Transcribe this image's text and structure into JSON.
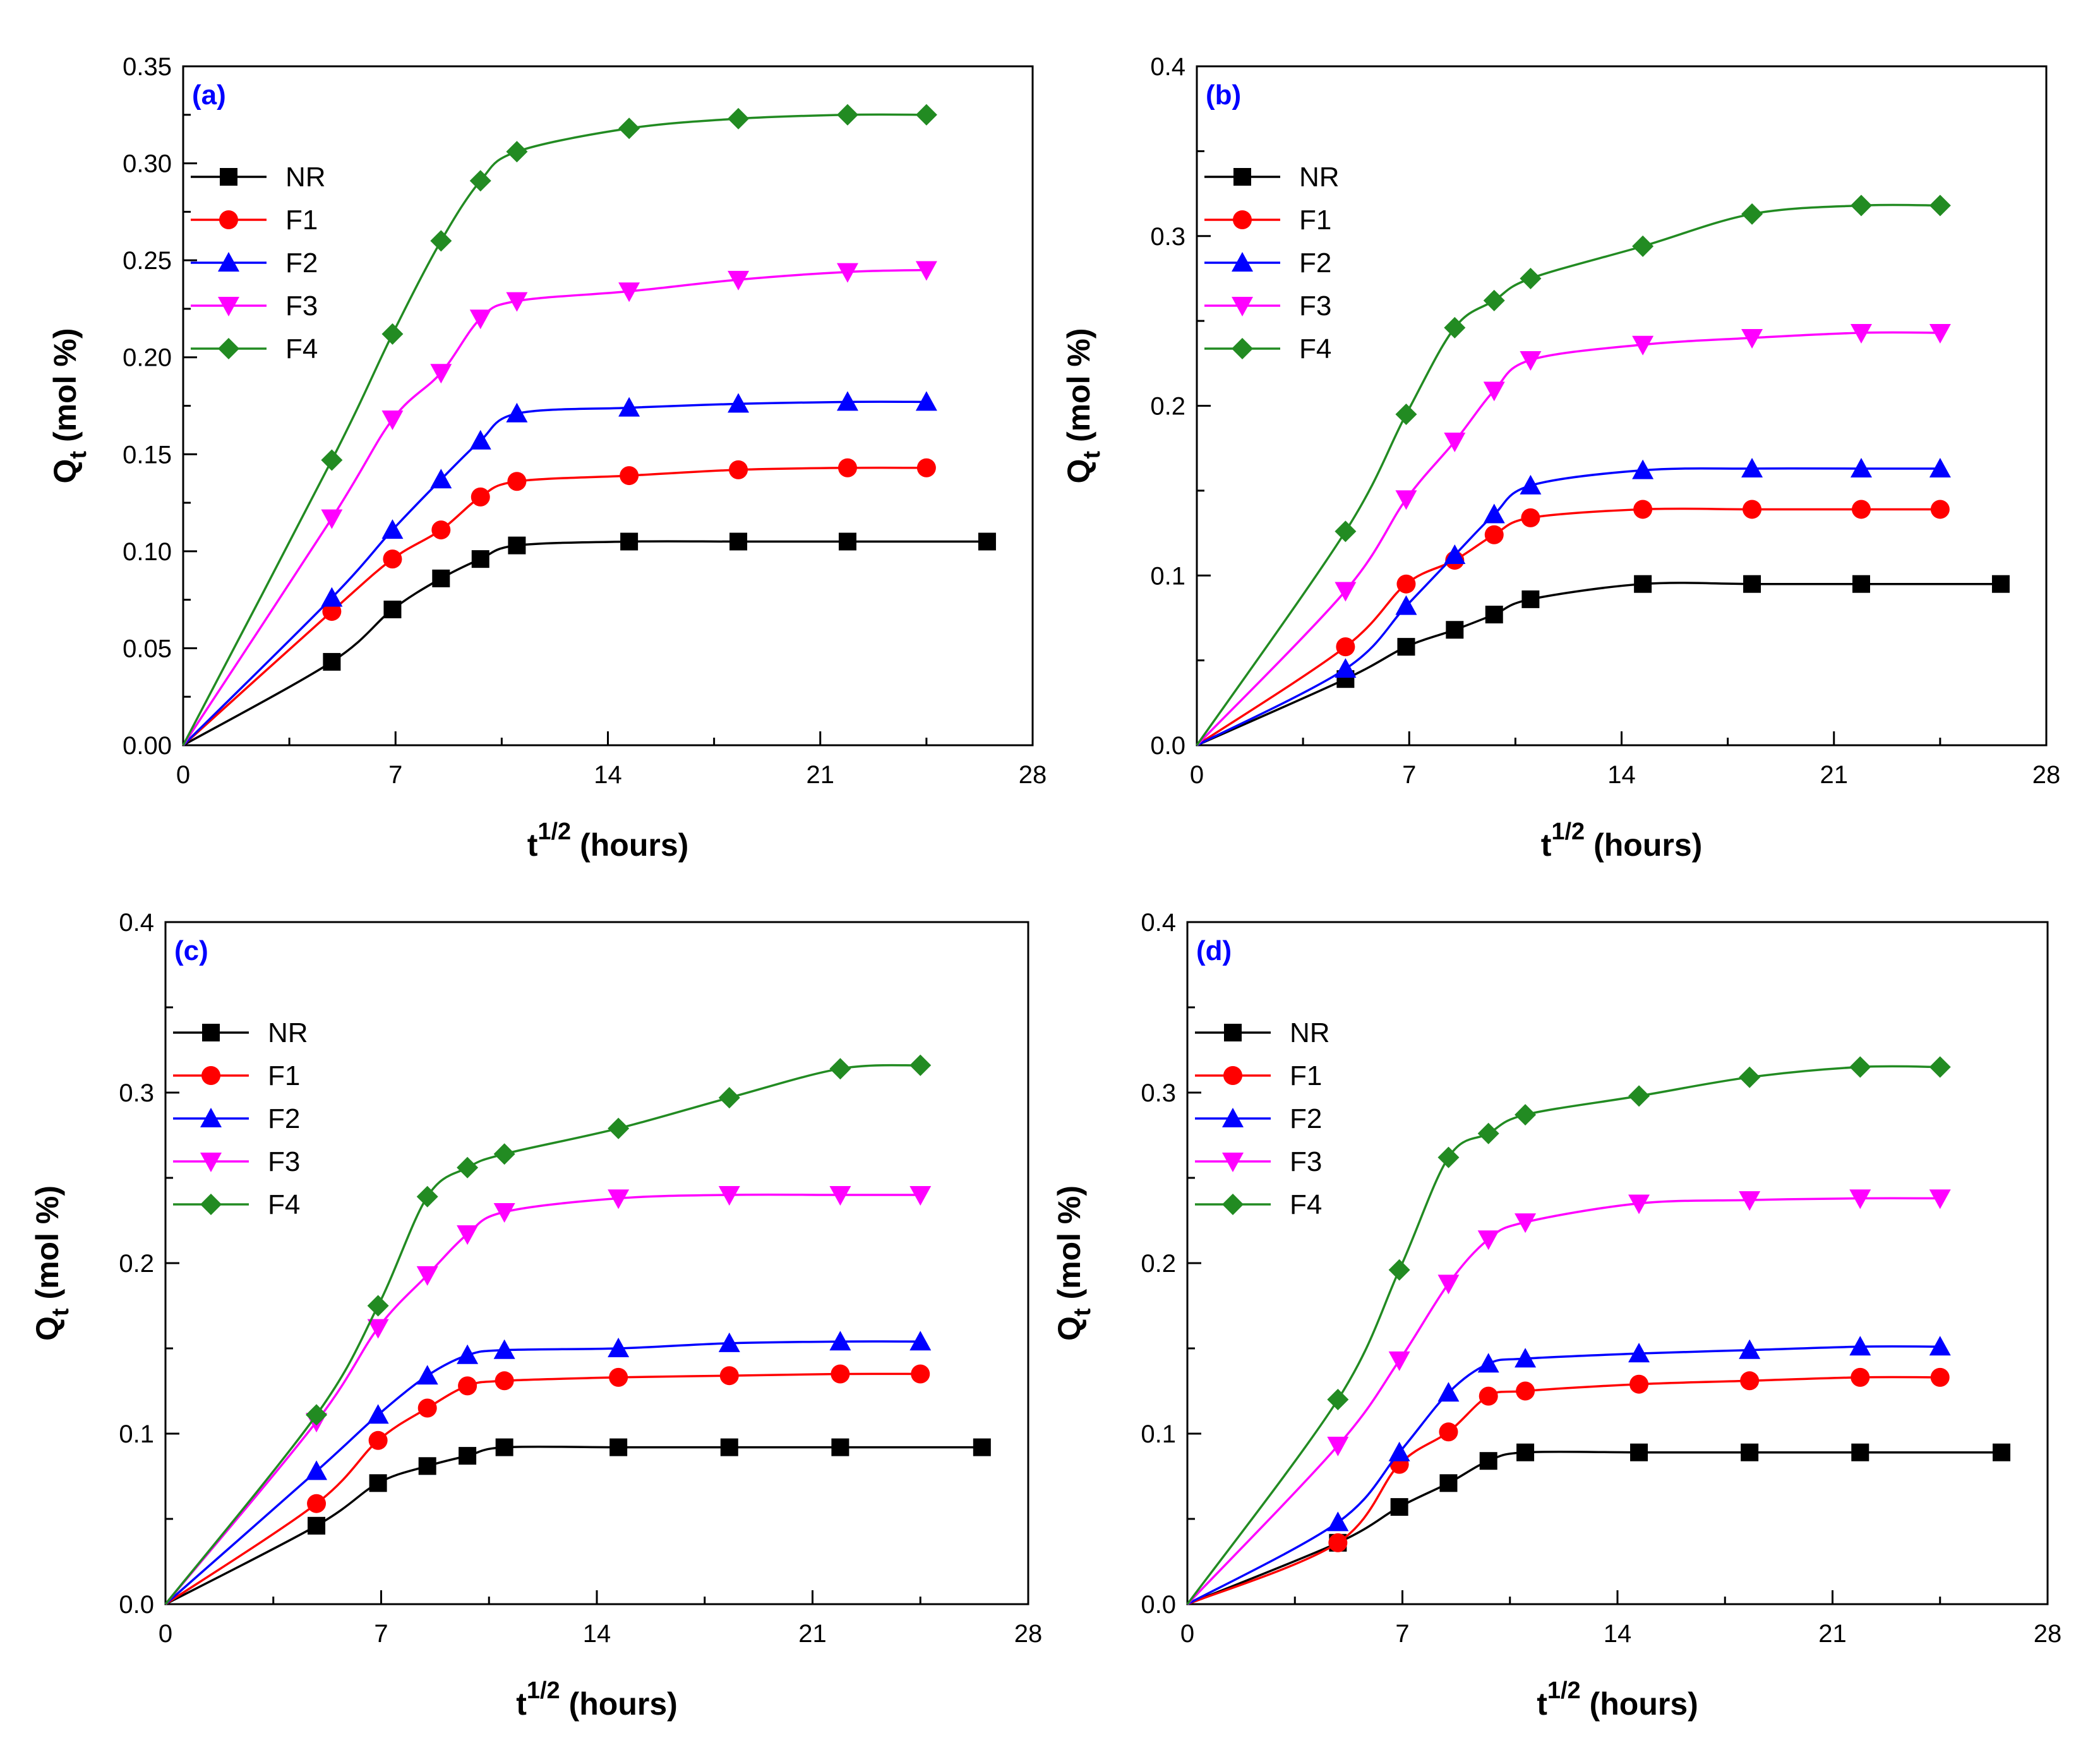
{
  "colors": {
    "NR": "#000000",
    "F1": "#ff0000",
    "F2": "#0000ff",
    "F3": "#ff00ff",
    "F4": "#228b22",
    "panel_label": "#0000ff"
  },
  "chart_data": [
    {
      "type": "line",
      "panel": "(a)",
      "xlabel": "t",
      "xlabel_sup": "1/2",
      "xlabel_unit": "(hours)",
      "ylabel": "Q",
      "ylabel_sub": "t",
      "ylabel_unit": "(mol %)",
      "xlim": [
        0,
        28
      ],
      "ylim": [
        0,
        0.35
      ],
      "xticks": [
        "0",
        "7",
        "14",
        "21",
        "28"
      ],
      "xtick_values": [
        0,
        7,
        14,
        21,
        28
      ],
      "yticks": [
        "0.00",
        "0.05",
        "0.10",
        "0.15",
        "0.20",
        "0.25",
        "0.30",
        "0.35"
      ],
      "ytick_values": [
        0,
        0.05,
        0.1,
        0.15,
        0.2,
        0.25,
        0.3,
        0.35
      ],
      "legend": [
        "NR",
        "F1",
        "F2",
        "F3",
        "F4"
      ],
      "series": [
        {
          "name": "NR",
          "marker": "square",
          "x": [
            0,
            4.9,
            6.9,
            8.5,
            9.8,
            11.0,
            14.7,
            18.3,
            21.9,
            26.5
          ],
          "y": [
            0,
            0.043,
            0.07,
            0.086,
            0.096,
            0.103,
            0.105,
            0.105,
            0.105,
            0.105
          ]
        },
        {
          "name": "F1",
          "marker": "circle",
          "x": [
            0,
            4.9,
            6.9,
            8.5,
            9.8,
            11.0,
            14.7,
            18.3,
            21.9,
            24.5
          ],
          "y": [
            0,
            0.069,
            0.096,
            0.111,
            0.128,
            0.136,
            0.139,
            0.142,
            0.143,
            0.143
          ]
        },
        {
          "name": "F2",
          "marker": "triangle-up",
          "x": [
            0,
            4.9,
            6.9,
            8.5,
            9.8,
            11.0,
            14.7,
            18.3,
            21.9,
            24.5
          ],
          "y": [
            0,
            0.076,
            0.111,
            0.137,
            0.157,
            0.171,
            0.174,
            0.176,
            0.177,
            0.177
          ]
        },
        {
          "name": "F3",
          "marker": "triangle-down",
          "x": [
            0,
            4.9,
            6.9,
            8.5,
            9.8,
            11.0,
            14.7,
            18.3,
            21.9,
            24.5
          ],
          "y": [
            0,
            0.117,
            0.168,
            0.192,
            0.22,
            0.229,
            0.234,
            0.24,
            0.244,
            0.245
          ]
        },
        {
          "name": "F4",
          "marker": "diamond",
          "x": [
            0,
            4.9,
            6.9,
            8.5,
            9.8,
            11.0,
            14.7,
            18.3,
            21.9,
            24.5
          ],
          "y": [
            0,
            0.147,
            0.212,
            0.26,
            0.291,
            0.306,
            0.318,
            0.323,
            0.325,
            0.325
          ]
        }
      ]
    },
    {
      "type": "line",
      "panel": "(b)",
      "xlabel": "t",
      "xlabel_sup": "1/2",
      "xlabel_unit": "(hours)",
      "ylabel": "Q",
      "ylabel_sub": "t",
      "ylabel_unit": "(mol %)",
      "xlim": [
        0,
        28
      ],
      "ylim": [
        0,
        0.4
      ],
      "xticks": [
        "0",
        "7",
        "14",
        "21",
        "28"
      ],
      "xtick_values": [
        0,
        7,
        14,
        21,
        28
      ],
      "yticks": [
        "0.0",
        "0.1",
        "0.2",
        "0.3",
        "0.4"
      ],
      "ytick_values": [
        0,
        0.1,
        0.2,
        0.3,
        0.4
      ],
      "legend": [
        "NR",
        "F1",
        "F2",
        "F3",
        "F4"
      ],
      "series": [
        {
          "name": "NR",
          "marker": "square",
          "x": [
            0,
            4.9,
            6.9,
            8.5,
            9.8,
            11.0,
            14.7,
            18.3,
            21.9,
            26.5
          ],
          "y": [
            0,
            0.039,
            0.058,
            0.068,
            0.077,
            0.086,
            0.095,
            0.095,
            0.095,
            0.095
          ]
        },
        {
          "name": "F1",
          "marker": "circle",
          "x": [
            0,
            4.9,
            6.9,
            8.5,
            9.8,
            11.0,
            14.7,
            18.3,
            21.9,
            24.5
          ],
          "y": [
            0,
            0.058,
            0.095,
            0.109,
            0.124,
            0.134,
            0.139,
            0.139,
            0.139,
            0.139
          ]
        },
        {
          "name": "F2",
          "marker": "triangle-up",
          "x": [
            0,
            4.9,
            6.9,
            8.5,
            9.8,
            11.0,
            14.7,
            18.3,
            21.9,
            24.5
          ],
          "y": [
            0,
            0.045,
            0.082,
            0.112,
            0.136,
            0.153,
            0.162,
            0.163,
            0.163,
            0.163
          ]
        },
        {
          "name": "F3",
          "marker": "triangle-down",
          "x": [
            0,
            4.9,
            6.9,
            8.5,
            9.8,
            11.0,
            14.7,
            18.3,
            21.9,
            24.5
          ],
          "y": [
            0,
            0.091,
            0.145,
            0.179,
            0.209,
            0.227,
            0.236,
            0.24,
            0.243,
            0.243
          ]
        },
        {
          "name": "F4",
          "marker": "diamond",
          "x": [
            0,
            4.9,
            6.9,
            8.5,
            9.8,
            11.0,
            14.7,
            18.3,
            21.9,
            24.5
          ],
          "y": [
            0,
            0.126,
            0.195,
            0.246,
            0.262,
            0.275,
            0.294,
            0.313,
            0.318,
            0.318
          ]
        }
      ]
    },
    {
      "type": "line",
      "panel": "(c)",
      "xlabel": "t",
      "xlabel_sup": "1/2",
      "xlabel_unit": "(hours)",
      "ylabel": "Q",
      "ylabel_sub": "t",
      "ylabel_unit": "(mol %)",
      "xlim": [
        0,
        28
      ],
      "ylim": [
        0,
        0.4
      ],
      "xticks": [
        "0",
        "7",
        "14",
        "21",
        "28"
      ],
      "xtick_values": [
        0,
        7,
        14,
        21,
        28
      ],
      "yticks": [
        "0.0",
        "0.1",
        "0.2",
        "0.3",
        "0.4"
      ],
      "ytick_values": [
        0,
        0.1,
        0.2,
        0.3,
        0.4
      ],
      "legend": [
        "NR",
        "F1",
        "F2",
        "F3",
        "F4"
      ],
      "series": [
        {
          "name": "NR",
          "marker": "square",
          "x": [
            0,
            4.9,
            6.9,
            8.5,
            9.8,
            11.0,
            14.7,
            18.3,
            21.9,
            26.5
          ],
          "y": [
            0,
            0.046,
            0.071,
            0.081,
            0.087,
            0.092,
            0.092,
            0.092,
            0.092,
            0.092
          ]
        },
        {
          "name": "F1",
          "marker": "circle",
          "x": [
            0,
            4.9,
            6.9,
            8.5,
            9.8,
            11.0,
            14.7,
            18.3,
            21.9,
            24.5
          ],
          "y": [
            0,
            0.059,
            0.096,
            0.115,
            0.128,
            0.131,
            0.133,
            0.134,
            0.135,
            0.135
          ]
        },
        {
          "name": "F2",
          "marker": "triangle-up",
          "x": [
            0,
            4.9,
            6.9,
            8.5,
            9.8,
            11.0,
            14.7,
            18.3,
            21.9,
            24.5
          ],
          "y": [
            0,
            0.078,
            0.111,
            0.134,
            0.146,
            0.149,
            0.15,
            0.153,
            0.154,
            0.154
          ]
        },
        {
          "name": "F3",
          "marker": "triangle-down",
          "x": [
            0,
            4.9,
            6.9,
            8.5,
            9.8,
            11.0,
            14.7,
            18.3,
            21.9,
            24.5
          ],
          "y": [
            0,
            0.107,
            0.162,
            0.193,
            0.217,
            0.23,
            0.238,
            0.24,
            0.24,
            0.24
          ]
        },
        {
          "name": "F4",
          "marker": "diamond",
          "x": [
            0,
            4.9,
            6.9,
            8.5,
            9.8,
            11.0,
            14.7,
            18.3,
            21.9,
            24.5
          ],
          "y": [
            0,
            0.111,
            0.175,
            0.239,
            0.256,
            0.264,
            0.279,
            0.297,
            0.314,
            0.316
          ]
        }
      ]
    },
    {
      "type": "line",
      "panel": "(d)",
      "xlabel": "t",
      "xlabel_sup": "1/2",
      "xlabel_unit": "(hours)",
      "ylabel": "Q",
      "ylabel_sub": "t",
      "ylabel_unit": "(mol %)",
      "xlim": [
        0,
        28
      ],
      "ylim": [
        0,
        0.4
      ],
      "xticks": [
        "0",
        "7",
        "14",
        "21",
        "28"
      ],
      "xtick_values": [
        0,
        7,
        14,
        21,
        28
      ],
      "yticks": [
        "0.0",
        "0.1",
        "0.2",
        "0.3",
        "0.4"
      ],
      "ytick_values": [
        0,
        0.1,
        0.2,
        0.3,
        0.4
      ],
      "legend": [
        "NR",
        "F1",
        "F2",
        "F3",
        "F4"
      ],
      "series": [
        {
          "name": "NR",
          "marker": "square",
          "x": [
            0,
            4.9,
            6.9,
            8.5,
            9.8,
            11.0,
            14.7,
            18.3,
            21.9,
            26.5
          ],
          "y": [
            0,
            0.036,
            0.057,
            0.071,
            0.084,
            0.089,
            0.089,
            0.089,
            0.089,
            0.089
          ]
        },
        {
          "name": "F1",
          "marker": "circle",
          "x": [
            0,
            4.9,
            6.9,
            8.5,
            9.8,
            11.0,
            14.7,
            18.3,
            21.9,
            24.5
          ],
          "y": [
            0,
            0.036,
            0.082,
            0.101,
            0.122,
            0.125,
            0.129,
            0.131,
            0.133,
            0.133
          ]
        },
        {
          "name": "F2",
          "marker": "triangle-up",
          "x": [
            0,
            4.9,
            6.9,
            8.5,
            9.8,
            11.0,
            14.7,
            18.3,
            21.9,
            24.5
          ],
          "y": [
            0,
            0.048,
            0.089,
            0.124,
            0.141,
            0.144,
            0.147,
            0.149,
            0.151,
            0.151
          ]
        },
        {
          "name": "F3",
          "marker": "triangle-down",
          "x": [
            0,
            4.9,
            6.9,
            8.5,
            9.8,
            11.0,
            14.7,
            18.3,
            21.9,
            24.5
          ],
          "y": [
            0,
            0.093,
            0.143,
            0.188,
            0.214,
            0.224,
            0.235,
            0.237,
            0.238,
            0.238
          ]
        },
        {
          "name": "F4",
          "marker": "diamond",
          "x": [
            0,
            4.9,
            6.9,
            8.5,
            9.8,
            11.0,
            14.7,
            18.3,
            21.9,
            24.5
          ],
          "y": [
            0,
            0.12,
            0.196,
            0.262,
            0.276,
            0.287,
            0.298,
            0.309,
            0.315,
            0.315
          ]
        }
      ]
    }
  ]
}
